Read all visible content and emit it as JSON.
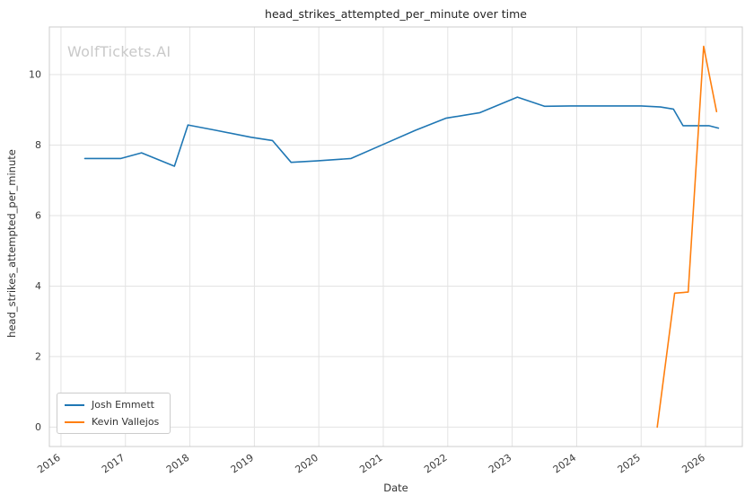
{
  "watermark": "WolfTickets.AI",
  "chart_data": {
    "type": "line",
    "title": "head_strikes_attempted_per_minute over time",
    "xlabel": "Date",
    "ylabel": "head_strikes_attempted_per_minute",
    "xlim": [
      2015.82,
      2026.57
    ],
    "ylim": [
      -0.55,
      11.35
    ],
    "x_ticks": [
      2016,
      2017,
      2018,
      2019,
      2020,
      2021,
      2022,
      2023,
      2024,
      2025,
      2026
    ],
    "y_ticks": [
      0,
      2,
      4,
      6,
      8,
      10
    ],
    "grid": true,
    "legend_position": "lower left",
    "series": [
      {
        "name": "Josh Emmett",
        "color": "#1f77b4",
        "x": [
          2016.37,
          2016.93,
          2017.25,
          2017.76,
          2017.97,
          2018.4,
          2018.95,
          2019.28,
          2019.57,
          2019.97,
          2020.5,
          2021.0,
          2021.5,
          2021.97,
          2022.5,
          2023.08,
          2023.5,
          2024.0,
          2024.55,
          2025.0,
          2025.3,
          2025.5,
          2025.65,
          2026.05,
          2026.2
        ],
        "y": [
          7.62,
          7.62,
          7.78,
          7.4,
          8.57,
          8.42,
          8.22,
          8.13,
          7.51,
          7.55,
          7.62,
          8.02,
          8.42,
          8.76,
          8.92,
          9.36,
          9.1,
          9.11,
          9.11,
          9.11,
          9.08,
          9.02,
          8.55,
          8.55,
          8.48
        ]
      },
      {
        "name": "Kevin Vallejos",
        "color": "#ff7f0e",
        "x": [
          2025.25,
          2025.52,
          2025.73,
          2025.97,
          2026.17
        ],
        "y": [
          0.0,
          3.8,
          3.83,
          10.8,
          8.95
        ]
      }
    ]
  }
}
